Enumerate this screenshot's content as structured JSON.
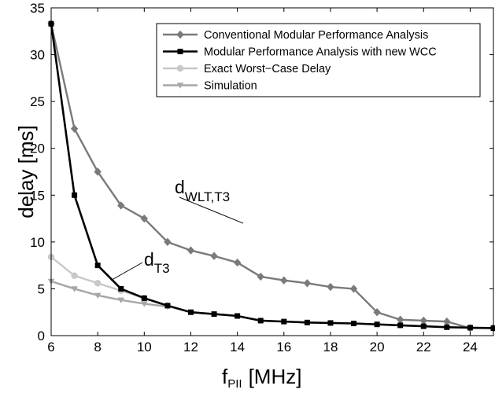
{
  "chart_data": {
    "type": "line",
    "xlabel_main": "f",
    "xlabel_sub": "PII",
    "xlabel_unit": "[MHz]",
    "ylabel": "delay [ms]",
    "xlim": [
      6,
      25
    ],
    "ylim": [
      0,
      35
    ],
    "xticks": [
      6,
      8,
      10,
      12,
      14,
      16,
      18,
      20,
      22,
      24
    ],
    "yticks": [
      0,
      5,
      10,
      15,
      20,
      25,
      30,
      35
    ],
    "grid": false,
    "legend_position": "top-right",
    "series": [
      {
        "name": "Conventional Modular Performance Analysis",
        "color": "#7a7a7a",
        "marker": "diamond",
        "x": [
          6,
          7,
          8,
          9,
          10,
          11,
          12,
          13,
          14,
          15,
          16,
          17,
          18,
          19,
          20,
          21,
          22,
          23,
          24,
          25
        ],
        "y": [
          33.3,
          22.1,
          17.5,
          13.9,
          12.5,
          10.0,
          9.1,
          8.5,
          7.8,
          6.3,
          5.9,
          5.6,
          5.2,
          5.0,
          2.5,
          1.7,
          1.6,
          1.5,
          0.8,
          0.8
        ]
      },
      {
        "name": "Modular Performance Analysis with new WCC",
        "color": "#000000",
        "marker": "square",
        "x": [
          6,
          7,
          8,
          9,
          10,
          11,
          12,
          13,
          14,
          15,
          16,
          17,
          18,
          19,
          20,
          21,
          22,
          23,
          24,
          25
        ],
        "y": [
          33.3,
          15.0,
          7.5,
          5.0,
          4.0,
          3.2,
          2.5,
          2.3,
          2.1,
          1.6,
          1.5,
          1.4,
          1.35,
          1.3,
          1.2,
          1.1,
          1.0,
          0.9,
          0.85,
          0.8
        ]
      },
      {
        "name": "Exact Worst−Case Delay",
        "color": "#c8c8c8",
        "marker": "circle",
        "x": [
          6,
          7,
          8,
          9,
          10,
          11
        ],
        "y": [
          8.4,
          6.4,
          5.6,
          4.8,
          4.0,
          3.2
        ]
      },
      {
        "name": "Simulation",
        "color": "#a6a6a6",
        "marker": "triangle-down",
        "x": [
          6,
          7,
          8,
          9,
          10,
          11
        ],
        "y": [
          5.8,
          5.0,
          4.3,
          3.8,
          3.4,
          3.1
        ]
      }
    ],
    "annotations": [
      {
        "base": "d",
        "sub": "WLT,T3",
        "target_x": 14.25,
        "target_y": 7.2
      },
      {
        "base": "d",
        "sub": "T3",
        "target_x": 8.5,
        "target_y": 6.4
      }
    ]
  }
}
